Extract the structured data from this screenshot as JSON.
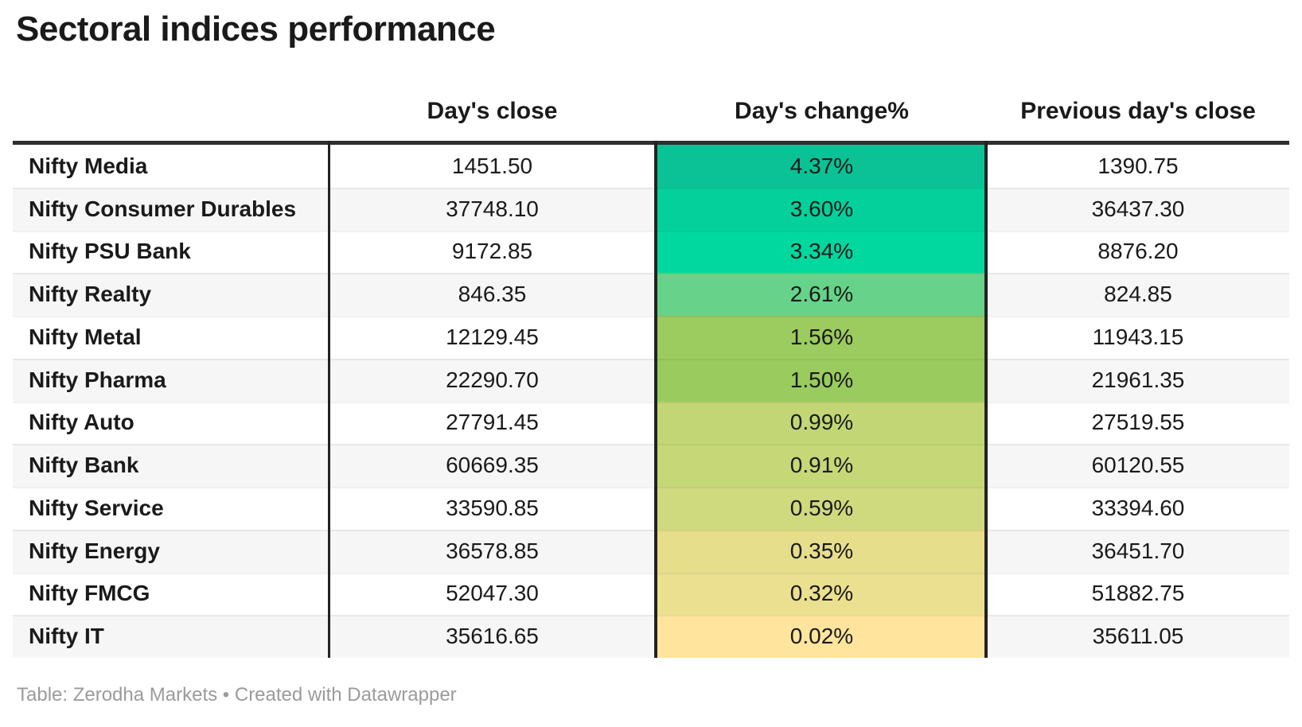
{
  "title": "Sectoral indices performance",
  "table": {
    "columns": {
      "label": "",
      "close": "Day's close",
      "change": "Day's change%",
      "prev": "Previous day's close"
    },
    "rows": [
      {
        "label": "Nifty Media",
        "close": "1451.50",
        "change": "4.37%",
        "change_color": "#0ac295",
        "prev": "1390.75"
      },
      {
        "label": "Nifty Consumer Durables",
        "close": "37748.10",
        "change": "3.60%",
        "change_color": "#04d09b",
        "prev": "36437.30"
      },
      {
        "label": "Nifty PSU Bank",
        "close": "9172.85",
        "change": "3.34%",
        "change_color": "#01d8a0",
        "prev": "8876.20"
      },
      {
        "label": "Nifty Realty",
        "close": "846.35",
        "change": "2.61%",
        "change_color": "#67d289",
        "prev": "824.85"
      },
      {
        "label": "Nifty Metal",
        "close": "12129.45",
        "change": "1.56%",
        "change_color": "#9ccb5f",
        "prev": "11943.15"
      },
      {
        "label": "Nifty Pharma",
        "close": "22290.70",
        "change": "1.50%",
        "change_color": "#9acb5e",
        "prev": "21961.35"
      },
      {
        "label": "Nifty Auto",
        "close": "27791.45",
        "change": "0.99%",
        "change_color": "#c2d675",
        "prev": "27519.55"
      },
      {
        "label": "Nifty Bank",
        "close": "60669.35",
        "change": "0.91%",
        "change_color": "#c6d778",
        "prev": "60120.55"
      },
      {
        "label": "Nifty Service",
        "close": "33590.85",
        "change": "0.59%",
        "change_color": "#cfd97e",
        "prev": "33394.60"
      },
      {
        "label": "Nifty Energy",
        "close": "36578.85",
        "change": "0.35%",
        "change_color": "#e7de8c",
        "prev": "36451.70"
      },
      {
        "label": "Nifty FMCG",
        "close": "52047.30",
        "change": "0.32%",
        "change_color": "#ebe090",
        "prev": "51882.75"
      },
      {
        "label": "Nifty IT",
        "close": "35616.65",
        "change": "0.02%",
        "change_color": "#fee49c",
        "prev": "35611.05"
      }
    ]
  },
  "footer": {
    "credit": "Table: Zerodha Markets • Created with Datawrapper"
  },
  "colors": {
    "header_border": "#2e2e2e",
    "column_divider": "#222222",
    "stripe": "#f6f6f6",
    "text": "#1a1a1a",
    "footer_text": "#9b9b9b",
    "heatmap_max": "#0ac295",
    "heatmap_min": "#fee49c"
  },
  "chart_data": {
    "type": "table",
    "title": "Sectoral indices performance",
    "columns": [
      "",
      "Day's close",
      "Day's change%",
      "Previous day's close"
    ],
    "rows": [
      [
        "Nifty Media",
        1451.5,
        "4.37%",
        1390.75
      ],
      [
        "Nifty Consumer Durables",
        37748.1,
        "3.60%",
        36437.3
      ],
      [
        "Nifty PSU Bank",
        9172.85,
        "3.34%",
        8876.2
      ],
      [
        "Nifty Realty",
        846.35,
        "2.61%",
        824.85
      ],
      [
        "Nifty Metal",
        12129.45,
        "1.56%",
        11943.15
      ],
      [
        "Nifty Pharma",
        22290.7,
        "1.50%",
        21961.35
      ],
      [
        "Nifty Auto",
        27791.45,
        "0.99%",
        27519.55
      ],
      [
        "Nifty Bank",
        60669.35,
        "0.91%",
        60120.55
      ],
      [
        "Nifty Service",
        33590.85,
        "0.59%",
        33394.6
      ],
      [
        "Nifty Energy",
        36578.85,
        "0.35%",
        36451.7
      ],
      [
        "Nifty FMCG",
        52047.3,
        "0.32%",
        51882.75
      ],
      [
        "Nifty IT",
        35616.65,
        "0.02%",
        35611.05
      ]
    ],
    "heatmap_column": "Day's change%",
    "heatmap_scale": {
      "min_value": "0.02%",
      "max_value": "4.37%",
      "min_color": "#fee49c",
      "max_color": "#0ac295"
    },
    "credit": "Table: Zerodha Markets • Created with Datawrapper"
  }
}
